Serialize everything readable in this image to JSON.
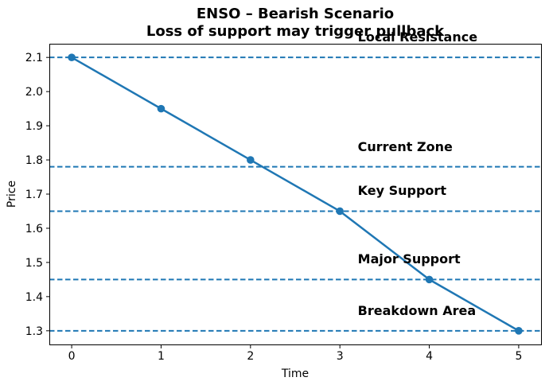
{
  "chart_data": {
    "type": "line",
    "title": "ENSO – Bearish Scenario",
    "subtitle": "Loss of support may trigger pullback",
    "xlabel": "Time",
    "ylabel": "Price",
    "x": [
      0,
      1,
      2,
      3,
      4,
      5
    ],
    "series": [
      {
        "name": "Price",
        "values": [
          2.1,
          1.95,
          1.8,
          1.65,
          1.45,
          1.3
        ],
        "color": "#1f77b4",
        "marker": "circle",
        "style": "solid"
      }
    ],
    "hlines": [
      {
        "label": "Local Resistance",
        "value": 2.1,
        "color": "#1f77b4",
        "style": "dashed"
      },
      {
        "label": "Current Zone",
        "value": 1.78,
        "color": "#1f77b4",
        "style": "dashed"
      },
      {
        "label": "Key Support",
        "value": 1.65,
        "color": "#1f77b4",
        "style": "dashed"
      },
      {
        "label": "Major Support",
        "value": 1.45,
        "color": "#1f77b4",
        "style": "dashed"
      },
      {
        "label": "Breakdown Area",
        "value": 1.3,
        "color": "#1f77b4",
        "style": "dashed"
      }
    ],
    "xlim": [
      -0.25,
      5.25
    ],
    "ylim": [
      1.26,
      2.14
    ],
    "xticks": [
      0,
      1,
      2,
      3,
      4,
      5
    ],
    "yticks": [
      1.3,
      1.4,
      1.5,
      1.6,
      1.7,
      1.8,
      1.9,
      2.0,
      2.1
    ],
    "grid": false,
    "legend": null,
    "frame_color": "#000000",
    "text_color": "#000000"
  }
}
